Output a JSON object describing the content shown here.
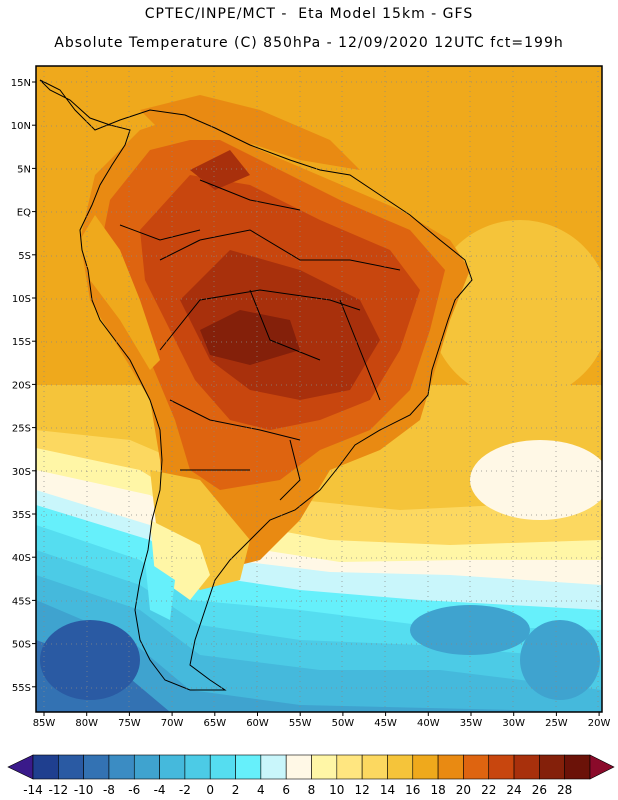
{
  "header": {
    "line1": "CPTEC/INPE/MCT -  Eta Model 15km - GFS",
    "line2": "Absolute Temperature (C) 850hPa - 12/09/2020 12UTC fct=199h"
  },
  "map": {
    "lat_labels": [
      "15N",
      "10N",
      "5N",
      "EQ",
      "5S",
      "10S",
      "15S",
      "20S",
      "25S",
      "30S",
      "35S",
      "40S",
      "45S",
      "50S",
      "55S"
    ],
    "lon_labels": [
      "85W",
      "80W",
      "75W",
      "70W",
      "65W",
      "60W",
      "55W",
      "50W",
      "45W",
      "40W",
      "35W",
      "30W",
      "25W",
      "20W"
    ]
  },
  "colorbar": {
    "labels": [
      "-14",
      "-12",
      "-10",
      "-8",
      "-6",
      "-4",
      "-2",
      "0",
      "2",
      "4",
      "6",
      "8",
      "10",
      "12",
      "14",
      "16",
      "18",
      "20",
      "22",
      "24",
      "26",
      "28"
    ],
    "colors": [
      "#1f3f8f",
      "#2a5aa3",
      "#3372b3",
      "#3b8cc3",
      "#3fa3cf",
      "#45b9dc",
      "#4ccbe6",
      "#55ddf0",
      "#66f0fb",
      "#c9f6fb",
      "#fff8e6",
      "#fff6a6",
      "#ffe680",
      "#fcd860",
      "#f5c43a",
      "#efa91c",
      "#e98a12",
      "#de6410",
      "#c8460e",
      "#a8300c",
      "#84200a",
      "#6b1208"
    ],
    "low_arrow": "#3a1a8a",
    "high_arrow": "#8a0a2a"
  }
}
